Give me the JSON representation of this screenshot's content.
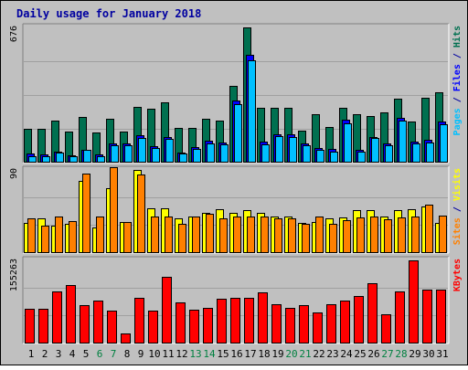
{
  "colors": {
    "frame_bg": "#c0c0c0",
    "plot_bg": "#c0c0c0",
    "title": "#0000a0",
    "hits": "#007050",
    "files": "#0000ff",
    "pages": "#00c0ff",
    "visits": "#ffff00",
    "sites": "#ff8000",
    "kbytes": "#ff0000",
    "weekday_label": "#000000",
    "weekend_label": "#008040",
    "separator": "#0000a0"
  },
  "chart_data": {
    "type": "bar",
    "title": "Daily usage for January 2018",
    "days": [
      "1",
      "2",
      "3",
      "4",
      "5",
      "6",
      "7",
      "8",
      "9",
      "10",
      "11",
      "12",
      "13",
      "14",
      "15",
      "16",
      "17",
      "18",
      "19",
      "20",
      "21",
      "22",
      "23",
      "24",
      "25",
      "26",
      "27",
      "28",
      "29",
      "30",
      "31"
    ],
    "weekend_days": [
      "6",
      "7",
      "13",
      "14",
      "20",
      "21",
      "27",
      "28"
    ],
    "panels": [
      {
        "id": "hits_files_pages",
        "ymax_label": "676",
        "ymax": 676,
        "legend": [
          "Pages",
          "Files",
          "Hits"
        ],
        "series": [
          {
            "name": "Hits",
            "values": [
              168,
              168,
              212,
              154,
              228,
              150,
              218,
              154,
              280,
              268,
              300,
              174,
              174,
              220,
              212,
              382,
              676,
              272,
              276,
              272,
              158,
              242,
              180,
              272,
              244,
              234,
              252,
              320,
              206,
              324,
              350
            ]
          },
          {
            "name": "Files",
            "values": [
              44,
              40,
              56,
              38,
              66,
              40,
              96,
              98,
              138,
              80,
              130,
              52,
              76,
              108,
              102,
              312,
              540,
              104,
              140,
              140,
              96,
              72,
              68,
              214,
              66,
              130,
              98,
              224,
              106,
              114,
              204
            ]
          },
          {
            "name": "Pages",
            "values": [
              34,
              30,
              48,
              30,
              62,
              34,
              86,
              88,
              124,
              72,
              118,
              44,
              70,
              98,
              92,
              292,
              510,
              90,
              132,
              130,
              88,
              62,
              56,
              198,
              56,
              122,
              88,
              212,
              98,
              102,
              190
            ]
          }
        ]
      },
      {
        "id": "visits_sites",
        "ymax_label": "90",
        "ymax": 90,
        "legend": [
          "Sites",
          "Visits"
        ],
        "series": [
          {
            "name": "Visits",
            "values": [
              33,
              38,
              30,
              32,
              78,
              28,
              70,
              34,
              90,
              48,
              48,
              38,
              40,
              44,
              47,
              44,
              46,
              44,
              40,
              40,
              33,
              34,
              38,
              39,
              46,
              46,
              40,
              46,
              47,
              50,
              33
            ]
          },
          {
            "name": "Sites",
            "values": [
              38,
              30,
              40,
              35,
              86,
              40,
              93,
              34,
              85,
              40,
              40,
              32,
              40,
              43,
              38,
              40,
              40,
              40,
              38,
              38,
              32,
              40,
              32,
              36,
              39,
              40,
              37,
              39,
              40,
              52,
              41
            ]
          }
        ]
      },
      {
        "id": "kbytes",
        "ymax_label": "155263",
        "ymax": 155263,
        "legend": [
          "KBytes"
        ],
        "series": [
          {
            "name": "KBytes",
            "values": [
              65000,
              65000,
              98000,
              110000,
              72000,
              81000,
              62000,
              19000,
              86000,
              61000,
              125000,
              77000,
              63000,
              67000,
              83000,
              85000,
              86000,
              95000,
              74000,
              67000,
              71000,
              58000,
              74000,
              81000,
              88000,
              112000,
              55000,
              97000,
              155263,
              101000,
              101000
            ]
          }
        ]
      }
    ]
  }
}
